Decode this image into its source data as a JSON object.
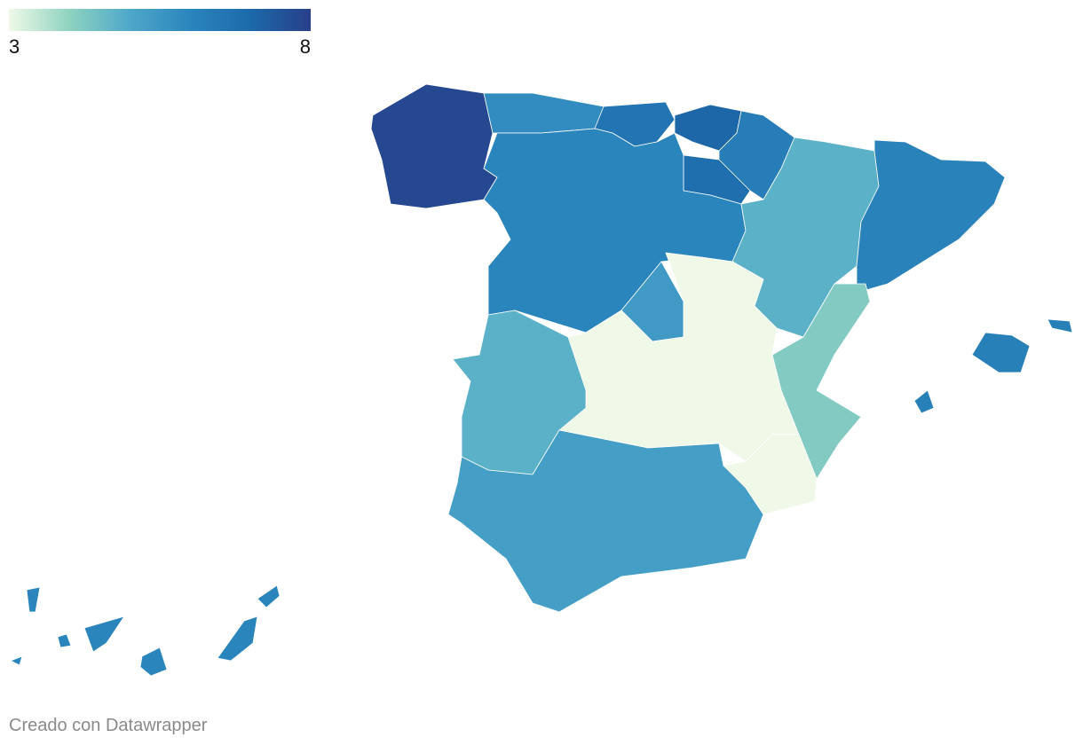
{
  "legend": {
    "domain": [
      3,
      8
    ],
    "colors": [
      "#f0f9e8",
      "#8fd3c0",
      "#4ea8ca",
      "#2b85bd",
      "#1c6aaa",
      "#283f89"
    ]
  },
  "regions": [
    7.8,
    5.8,
    6.6,
    7.1,
    6.3,
    6.8,
    6.0,
    4.8,
    6.1,
    5.4,
    3.0,
    4.8,
    4.2,
    3.0,
    5.3,
    6.2,
    6.0
  ],
  "credit": "Creado con Datawrapper"
}
